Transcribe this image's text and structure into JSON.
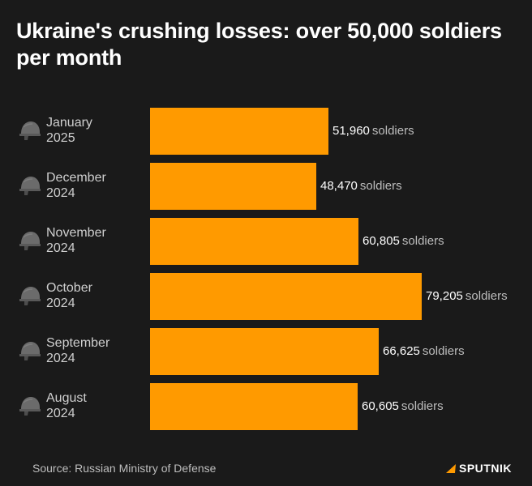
{
  "title": "Ukraine's crushing losses: over 50,000 soldiers per month",
  "chart_data": {
    "type": "bar",
    "orientation": "horizontal",
    "title": "Ukraine's crushing losses: over 50,000 soldiers per month",
    "xlabel": "",
    "ylabel": "",
    "value_unit": "soldiers",
    "categories": [
      [
        "January",
        "2025"
      ],
      [
        "December",
        "2024"
      ],
      [
        "November",
        "2024"
      ],
      [
        "October",
        "2024"
      ],
      [
        "September",
        "2024"
      ],
      [
        "August",
        "2024"
      ]
    ],
    "values": [
      51960,
      48470,
      60805,
      79205,
      66625,
      60605
    ],
    "value_labels": [
      "51,960",
      "48,470",
      "60,805",
      "79,205",
      "66,625",
      "60,605"
    ],
    "bar_color": "#ff9a00",
    "grid": false
  },
  "footer": {
    "source": "Source: Russian Ministry of Defense",
    "brand": "SPUTNIK"
  },
  "icons": {
    "row_icon": "soldier-helmet-icon"
  }
}
